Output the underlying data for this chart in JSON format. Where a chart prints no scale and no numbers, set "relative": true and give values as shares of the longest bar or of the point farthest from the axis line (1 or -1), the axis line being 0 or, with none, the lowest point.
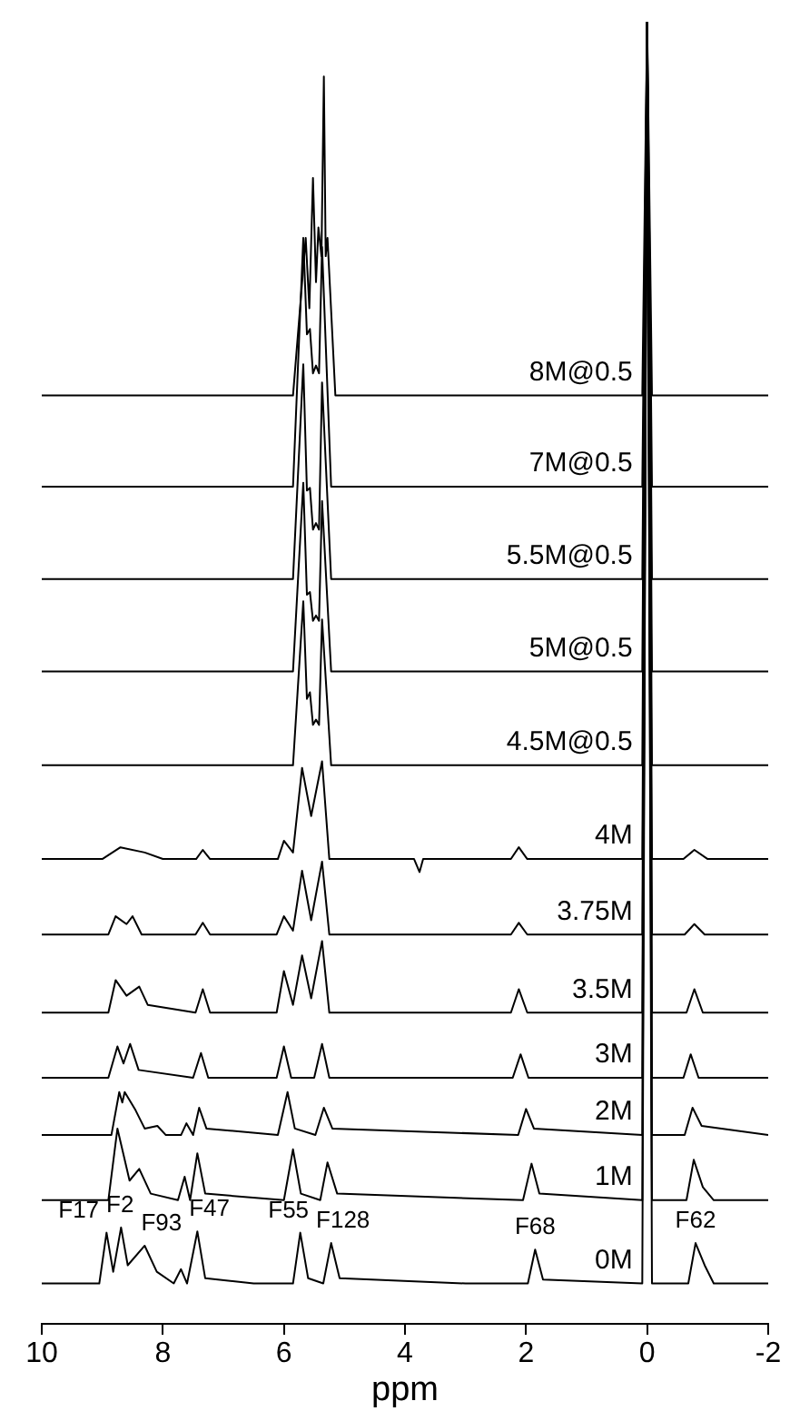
{
  "chart_data": {
    "type": "line",
    "xlabel": "ppm",
    "xlim": [
      10,
      -2
    ],
    "xticks": [
      10,
      8,
      6,
      4,
      2,
      0,
      -2
    ],
    "relative": true,
    "grid": false,
    "legend": false,
    "marker": "none",
    "line_style": "solid",
    "annotations": [
      {
        "text": "F17",
        "x": 8.93,
        "y": 0.07
      },
      {
        "text": "F2",
        "x": 8.69,
        "y": 0.074
      },
      {
        "text": "F93",
        "x": 8.3,
        "y": 0.06
      },
      {
        "text": "F47",
        "x": 7.43,
        "y": 0.071
      },
      {
        "text": "F55",
        "x": 5.73,
        "y": 0.07
      },
      {
        "text": "F128",
        "x": 5.22,
        "y": 0.062
      },
      {
        "text": "F68",
        "x": 1.85,
        "y": 0.057
      },
      {
        "text": "F62",
        "x": -0.8,
        "y": 0.062
      }
    ],
    "series": [
      {
        "name": "0M",
        "color": "#000000",
        "x": [
          10,
          9.05,
          8.93,
          8.82,
          8.69,
          8.58,
          8.3,
          8.1,
          7.82,
          7.7,
          7.6,
          7.43,
          7.3,
          6.5,
          5.85,
          5.73,
          5.6,
          5.35,
          5.22,
          5.08,
          3,
          1.97,
          1.85,
          1.72,
          0.08,
          0,
          -0.08,
          -0.68,
          -0.8,
          -0.95,
          -1.1,
          -2
        ],
        "values": [
          0.031,
          0.031,
          0.07,
          0.04,
          0.074,
          0.045,
          0.06,
          0.04,
          0.031,
          0.042,
          0.031,
          0.071,
          0.035,
          0.031,
          0.031,
          0.07,
          0.035,
          0.031,
          0.062,
          0.035,
          0.031,
          0.031,
          0.057,
          0.034,
          0.031,
          1,
          0.031,
          0.031,
          0.062,
          0.045,
          0.031,
          0.031
        ]
      },
      {
        "name": "1M",
        "color": "#000000",
        "x": [
          10,
          8.9,
          8.75,
          8.55,
          8.39,
          8.2,
          7.75,
          7.64,
          7.55,
          7.43,
          7.3,
          6,
          5.85,
          5.72,
          5.4,
          5.28,
          5.12,
          2.05,
          1.91,
          1.78,
          0.08,
          0,
          -0.08,
          -0.65,
          -0.77,
          -0.92,
          -1.1,
          -2
        ],
        "values": [
          0.095,
          0.095,
          0.15,
          0.11,
          0.119,
          0.1,
          0.095,
          0.113,
          0.095,
          0.131,
          0.1,
          0.095,
          0.134,
          0.1,
          0.095,
          0.124,
          0.1,
          0.095,
          0.123,
          0.1,
          0.095,
          1,
          0.095,
          0.095,
          0.126,
          0.105,
          0.095,
          0.095
        ]
      },
      {
        "name": "2M",
        "color": "#000000",
        "x": [
          10,
          8.85,
          8.72,
          8.67,
          8.63,
          8.45,
          8.3,
          8.09,
          7.95,
          7.7,
          7.61,
          7.5,
          7.4,
          7.28,
          6.1,
          5.94,
          5.82,
          5.48,
          5.34,
          5.2,
          2.13,
          2,
          1.87,
          0.08,
          0,
          -0.08,
          -0.62,
          -0.75,
          -0.9,
          -2
        ],
        "values": [
          0.145,
          0.145,
          0.178,
          0.17,
          0.178,
          0.164,
          0.15,
          0.152,
          0.145,
          0.145,
          0.154,
          0.145,
          0.166,
          0.15,
          0.145,
          0.178,
          0.15,
          0.145,
          0.166,
          0.15,
          0.145,
          0.165,
          0.15,
          0.145,
          1,
          0.145,
          0.145,
          0.166,
          0.152,
          0.145
        ]
      },
      {
        "name": "3M",
        "color": "#000000",
        "x": [
          10,
          8.9,
          8.75,
          8.65,
          8.54,
          8.4,
          7.5,
          7.37,
          7.25,
          6.12,
          6,
          5.88,
          5.5,
          5.37,
          5.25,
          2.22,
          2.09,
          1.96,
          0.08,
          0,
          -0.08,
          -0.6,
          -0.72,
          -0.85,
          -2
        ],
        "values": [
          0.189,
          0.189,
          0.213,
          0.2,
          0.215,
          0.195,
          0.189,
          0.208,
          0.189,
          0.189,
          0.213,
          0.189,
          0.189,
          0.215,
          0.189,
          0.189,
          0.207,
          0.189,
          0.189,
          1,
          0.189,
          0.189,
          0.207,
          0.189,
          0.189
        ]
      },
      {
        "name": "3.5M",
        "color": "#000000",
        "x": [
          10,
          8.9,
          8.78,
          8.6,
          8.39,
          8.25,
          7.46,
          7.34,
          7.22,
          6.12,
          6,
          5.85,
          5.7,
          5.55,
          5.37,
          5.25,
          2.25,
          2.12,
          1.98,
          0.08,
          0,
          -0.08,
          -0.65,
          -0.78,
          -0.92,
          -2
        ],
        "values": [
          0.239,
          0.239,
          0.264,
          0.252,
          0.259,
          0.245,
          0.239,
          0.257,
          0.239,
          0.239,
          0.271,
          0.245,
          0.283,
          0.25,
          0.294,
          0.239,
          0.239,
          0.257,
          0.239,
          0.239,
          1,
          0.239,
          0.239,
          0.257,
          0.239,
          0.239
        ]
      },
      {
        "name": "3.75M",
        "color": "#000000",
        "x": [
          10,
          8.9,
          8.78,
          8.6,
          8.5,
          8.35,
          7.46,
          7.34,
          7.22,
          6.12,
          6,
          5.85,
          5.7,
          5.55,
          5.37,
          5.25,
          2.25,
          2.12,
          1.98,
          0.08,
          0,
          -0.08,
          -0.62,
          -0.78,
          -0.95,
          -2
        ],
        "values": [
          0.299,
          0.299,
          0.313,
          0.307,
          0.313,
          0.299,
          0.299,
          0.308,
          0.299,
          0.299,
          0.313,
          0.302,
          0.348,
          0.31,
          0.355,
          0.299,
          0.299,
          0.308,
          0.299,
          0.299,
          1,
          0.299,
          0.299,
          0.307,
          0.299,
          0.299
        ]
      },
      {
        "name": "4M",
        "color": "#000000",
        "x": [
          10,
          9,
          8.7,
          8.3,
          8,
          7.45,
          7.34,
          7.22,
          6.1,
          6,
          5.85,
          5.7,
          5.55,
          5.37,
          5.25,
          3.85,
          3.76,
          3.7,
          2.25,
          2.12,
          1.98,
          0.08,
          0,
          -0.08,
          -0.6,
          -0.78,
          -1,
          -2
        ],
        "values": [
          0.357,
          0.357,
          0.366,
          0.362,
          0.357,
          0.357,
          0.364,
          0.357,
          0.357,
          0.371,
          0.362,
          0.427,
          0.39,
          0.432,
          0.357,
          0.357,
          0.347,
          0.357,
          0.357,
          0.366,
          0.357,
          0.357,
          1,
          0.357,
          0.357,
          0.364,
          0.357,
          0.357
        ]
      },
      {
        "name": "4.5M@0.5",
        "color": "#000000",
        "x": [
          10,
          5.85,
          5.68,
          5.62,
          5.57,
          5.52,
          5.47,
          5.42,
          5.37,
          5.22,
          0.08,
          0,
          -0.08,
          -2
        ],
        "values": [
          0.429,
          0.429,
          0.555,
          0.48,
          0.485,
          0.46,
          0.464,
          0.46,
          0.541,
          0.429,
          0.429,
          1,
          0.429,
          0.429
        ]
      },
      {
        "name": "5M@0.5",
        "color": "#000000",
        "x": [
          10,
          5.85,
          5.68,
          5.62,
          5.57,
          5.52,
          5.47,
          5.42,
          5.37,
          5.22,
          0.08,
          0,
          -0.08,
          -2
        ],
        "values": [
          0.501,
          0.501,
          0.646,
          0.56,
          0.562,
          0.54,
          0.544,
          0.54,
          0.632,
          0.501,
          0.501,
          1,
          0.501,
          0.501
        ]
      },
      {
        "name": "5.5M@0.5",
        "color": "#000000",
        "x": [
          10,
          5.85,
          5.68,
          5.62,
          5.57,
          5.52,
          5.47,
          5.42,
          5.37,
          5.22,
          0.08,
          0,
          -0.08,
          -2
        ],
        "values": [
          0.572,
          0.572,
          0.737,
          0.64,
          0.642,
          0.61,
          0.615,
          0.61,
          0.723,
          0.572,
          0.572,
          1,
          0.572,
          0.572
        ]
      },
      {
        "name": "7M@0.5",
        "color": "#000000",
        "x": [
          10,
          5.85,
          5.68,
          5.62,
          5.57,
          5.52,
          5.47,
          5.42,
          5.37,
          5.22,
          0.08,
          0,
          -0.08,
          -2
        ],
        "values": [
          0.643,
          0.643,
          0.834,
          0.76,
          0.764,
          0.73,
          0.736,
          0.73,
          0.827,
          0.643,
          0.643,
          1,
          0.643,
          0.643
        ]
      },
      {
        "name": "8M@0.5",
        "color": "#000000",
        "x": [
          10,
          5.85,
          5.64,
          5.58,
          5.52,
          5.47,
          5.43,
          5.38,
          5.34,
          5.31,
          5.28,
          5.15,
          0.08,
          0,
          -0.08,
          -2
        ],
        "values": [
          0.713,
          0.713,
          0.834,
          0.78,
          0.88,
          0.8,
          0.842,
          0.82,
          0.958,
          0.82,
          0.834,
          0.713,
          0.713,
          1,
          0.713,
          0.713
        ]
      }
    ]
  }
}
